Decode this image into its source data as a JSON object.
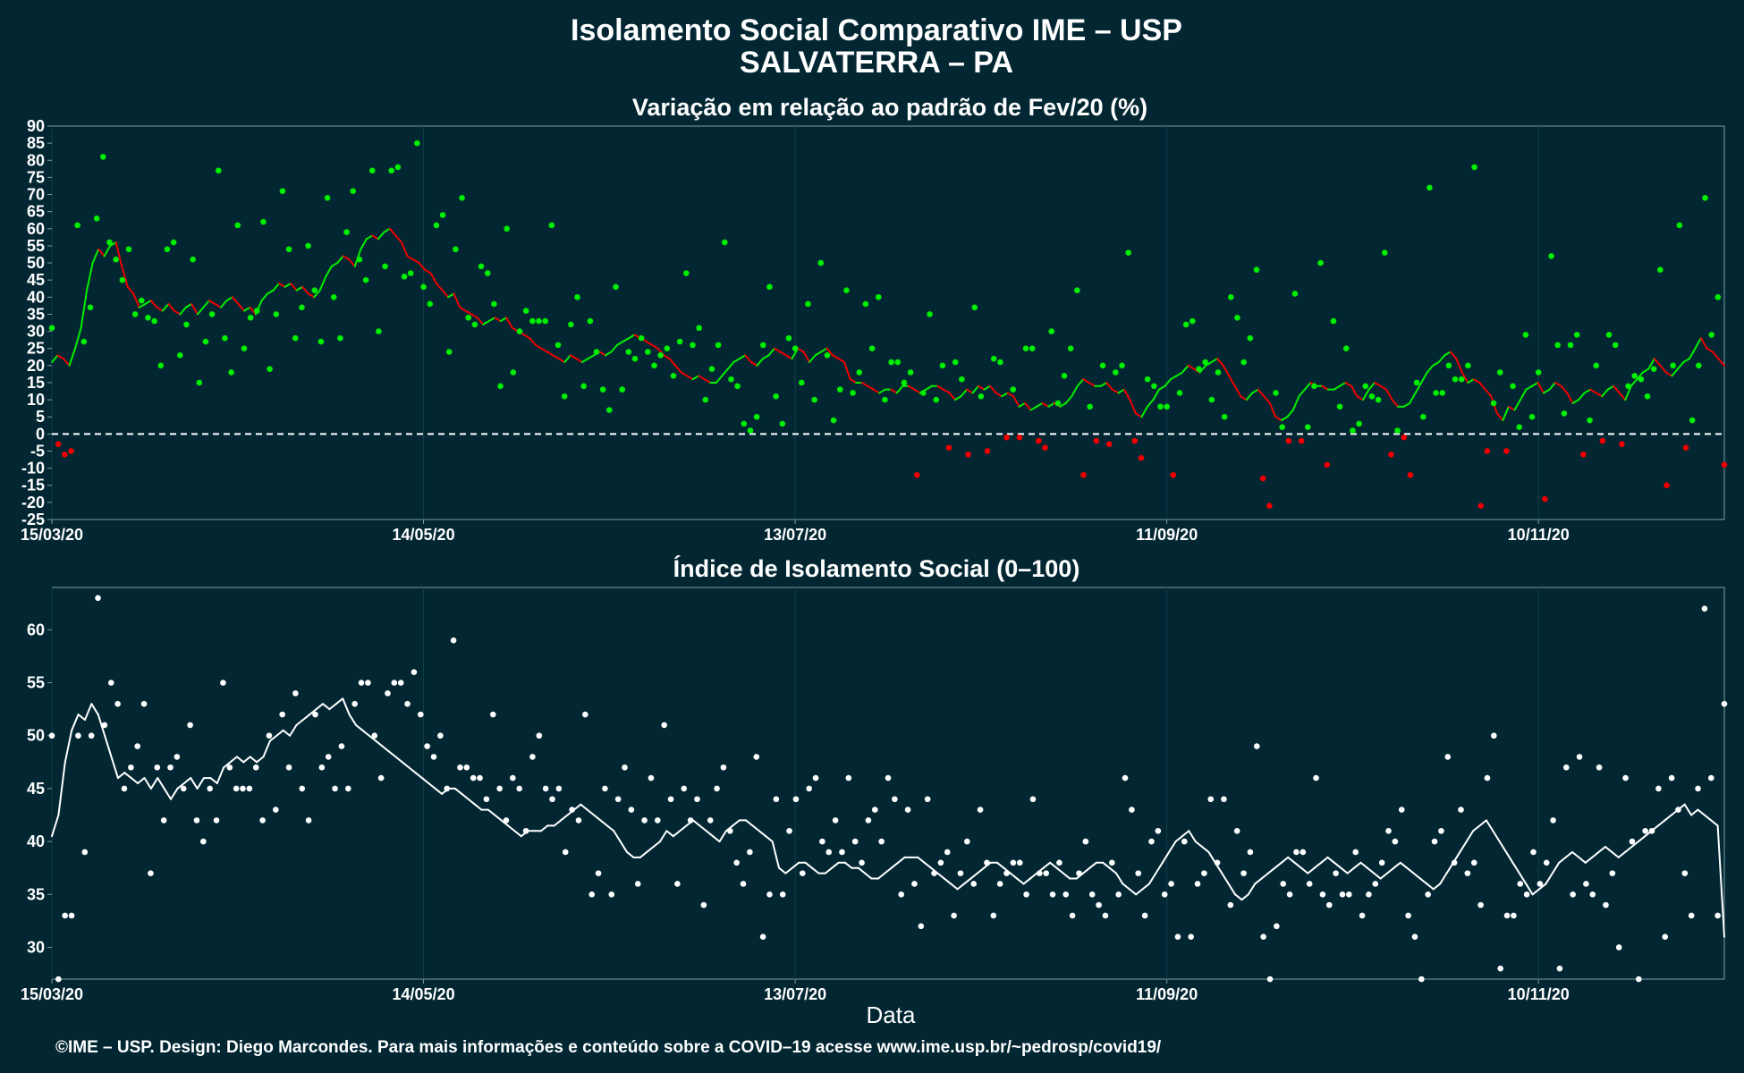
{
  "header": {
    "title_line1": "Isolamento Social Comparativo IME – USP",
    "title_line2": "SALVATERRA – PA"
  },
  "footer": {
    "credit": "©IME – USP. Design: Diego Marcondes. Para mais informações e conteúdo sobre a COVID–19 acesse www.ime.usp.br/~pedrosp/covid19/"
  },
  "colors": {
    "background": "#022733",
    "positive": "#00ee00",
    "negative": "#ee0000",
    "index_series": "#ffffff",
    "frame": "#7f9aa2"
  },
  "chart_data": [
    {
      "type": "scatter",
      "title": "Variação em relação ao padrão de Fev/20 (%)",
      "xlabel": "",
      "ylabel": "",
      "x_start": "2020-03-15",
      "x_end": "2020-12-10",
      "x_ticks": [
        "15/03/20",
        "14/05/20",
        "13/07/20",
        "11/09/20",
        "10/11/20"
      ],
      "ylim": [
        -25,
        90
      ],
      "y_ticks": [
        -25,
        -20,
        -15,
        -10,
        -5,
        0,
        5,
        10,
        15,
        20,
        25,
        30,
        35,
        40,
        45,
        50,
        55,
        60,
        65,
        70,
        75,
        80,
        85,
        90
      ],
      "reference_line": 0,
      "series": [
        {
          "type": "scatter",
          "values": [
            31,
            -3,
            -6,
            -5,
            61,
            27,
            37,
            63,
            81,
            56,
            51,
            45,
            54,
            35,
            39,
            34,
            33,
            20,
            54,
            56,
            23,
            32,
            51,
            15,
            27,
            35,
            77,
            28,
            18,
            61,
            25,
            34,
            36,
            62,
            19,
            35,
            71,
            54,
            28,
            37,
            55,
            42,
            27,
            69,
            40,
            28,
            59,
            71,
            51,
            45,
            77,
            30,
            49,
            77,
            78,
            46,
            47,
            85,
            43,
            38,
            61,
            64,
            24,
            54,
            69,
            34,
            32,
            49,
            47,
            38,
            14,
            60,
            18,
            30,
            36,
            33,
            33,
            33,
            61,
            26,
            11,
            32,
            40,
            14,
            33,
            24,
            13,
            7,
            43,
            13,
            24,
            22,
            28,
            24,
            20,
            23,
            25,
            17,
            27,
            47,
            26,
            31,
            10,
            19,
            26,
            56,
            16,
            14,
            3,
            1,
            5,
            26,
            43,
            11,
            3,
            28,
            25,
            15,
            38,
            10,
            50,
            23,
            4,
            13,
            42,
            12,
            18,
            38,
            25,
            40,
            10,
            21,
            21,
            15,
            18,
            -12,
            12,
            35,
            10,
            20,
            -4,
            21,
            16,
            -6,
            37,
            11,
            -5,
            22,
            21,
            -1,
            13,
            -1,
            25,
            25,
            -2,
            -4,
            30,
            9,
            17,
            25,
            42,
            -12,
            8,
            -2,
            20,
            -3,
            18,
            20,
            53,
            -2,
            -7,
            16,
            14,
            8,
            8,
            -12,
            12,
            32,
            33,
            19,
            21,
            10,
            18,
            5,
            40,
            34,
            21,
            28,
            48,
            -13,
            -21,
            12,
            2,
            -2,
            41,
            -2,
            2,
            14,
            50,
            -9,
            33,
            8,
            25,
            1,
            3,
            14,
            11,
            10,
            53,
            -6,
            1,
            -1,
            -12,
            15,
            5,
            72,
            12,
            12,
            20,
            16,
            16,
            20,
            78,
            -21,
            -5,
            9,
            18,
            -5,
            14,
            2,
            29,
            5,
            18,
            -19,
            52,
            26,
            6,
            26,
            29,
            -6,
            4,
            20,
            -2,
            29,
            26,
            -3,
            14,
            17,
            16,
            11,
            19,
            48,
            -15,
            20,
            61,
            -4,
            4,
            20,
            69,
            29,
            40,
            -9
          ]
        },
        {
          "type": "line",
          "name": "",
          "values": [
            21,
            23,
            22,
            20,
            25,
            31,
            42,
            50,
            54,
            52,
            55,
            56,
            49,
            43,
            41,
            37,
            38,
            39,
            37,
            36,
            38,
            36,
            35,
            37,
            38,
            35,
            37,
            39,
            38,
            37,
            39,
            40,
            38,
            36,
            37,
            35,
            39,
            41,
            42,
            44,
            43,
            44,
            42,
            43,
            41,
            40,
            42,
            46,
            49,
            50,
            52,
            51,
            49,
            54,
            57,
            58,
            57,
            59,
            60,
            58,
            56,
            52,
            51,
            50,
            48,
            47,
            44,
            42,
            40,
            41,
            37,
            36,
            35,
            34,
            32,
            33,
            34,
            33,
            34,
            31,
            30,
            29,
            28,
            26,
            25,
            24,
            23,
            22,
            21,
            23,
            22,
            21,
            22,
            23,
            24,
            23,
            24,
            26,
            27,
            28,
            29,
            28,
            27,
            26,
            25,
            23,
            22,
            20,
            18,
            17,
            16,
            17,
            16,
            15,
            15,
            17,
            19,
            21,
            22,
            23,
            21,
            20,
            22,
            23,
            25,
            24,
            23,
            22,
            25,
            24,
            21,
            23,
            24,
            25,
            23,
            22,
            21,
            16,
            15,
            15,
            14,
            13,
            12,
            13,
            13,
            12,
            14,
            14,
            13,
            12,
            13,
            14,
            14,
            13,
            12,
            10,
            11,
            13,
            12,
            14,
            13,
            14,
            12,
            11,
            12,
            11,
            8,
            9,
            7,
            8,
            9,
            8,
            9,
            8,
            9,
            11,
            14,
            16,
            15,
            14,
            14,
            15,
            13,
            12,
            13,
            10,
            6,
            5,
            8,
            10,
            13,
            14,
            16,
            17,
            18,
            20,
            19,
            18,
            20,
            21,
            22,
            20,
            17,
            14,
            11,
            10,
            12,
            13,
            11,
            9,
            5,
            4,
            5,
            7,
            11,
            13,
            15,
            14,
            14,
            13,
            13,
            14,
            15,
            14,
            11,
            10,
            13,
            15,
            14,
            13,
            10,
            8,
            8,
            9,
            12,
            15,
            18,
            20,
            21,
            23,
            24,
            22,
            18,
            15,
            16,
            15,
            13,
            11,
            6,
            4,
            8,
            7,
            10,
            13,
            14,
            15,
            12,
            13,
            15,
            14,
            12,
            9,
            10,
            12,
            13,
            12,
            11,
            13,
            14,
            12,
            10,
            14,
            16,
            18,
            19,
            22,
            20,
            18,
            17,
            19,
            21,
            22,
            25,
            28,
            25,
            24,
            22,
            20
          ]
        }
      ]
    },
    {
      "type": "scatter",
      "title": "Índice de Isolamento Social (0–100)",
      "xlabel": "Data",
      "ylabel": "",
      "x_start": "2020-03-15",
      "x_end": "2020-12-10",
      "x_ticks": [
        "15/03/20",
        "14/05/20",
        "13/07/20",
        "11/09/20",
        "10/11/20"
      ],
      "ylim": [
        27,
        64
      ],
      "y_ticks": [
        30,
        35,
        40,
        45,
        50,
        55,
        60
      ],
      "series": [
        {
          "type": "scatter",
          "values": [
            50,
            27,
            33,
            33,
            50,
            39,
            50,
            63,
            51,
            55,
            53,
            45,
            47,
            49,
            53,
            37,
            47,
            42,
            47,
            48,
            45,
            51,
            42,
            40,
            45,
            42,
            55,
            47,
            45,
            45,
            45,
            47,
            42,
            50,
            43,
            52,
            47,
            54,
            45,
            42,
            52,
            47,
            48,
            45,
            49,
            45,
            53,
            55,
            55,
            50,
            46,
            54,
            55,
            55,
            53,
            56,
            52,
            49,
            48,
            50,
            45,
            59,
            47,
            47,
            46,
            46,
            44,
            52,
            45,
            42,
            46,
            45,
            41,
            48,
            50,
            45,
            44,
            45,
            39,
            43,
            42,
            52,
            35,
            37,
            45,
            35,
            44,
            47,
            43,
            36,
            42,
            46,
            42,
            51,
            44,
            36,
            45,
            42,
            44,
            34,
            42,
            45,
            47,
            41,
            38,
            36,
            39,
            48,
            31,
            35,
            44,
            35,
            41,
            44,
            37,
            45,
            46,
            40,
            39,
            42,
            39,
            46,
            40,
            38,
            42,
            43,
            40,
            46,
            44,
            35,
            43,
            36,
            32,
            44,
            37,
            38,
            39,
            33,
            37,
            40,
            36,
            43,
            38,
            33,
            36,
            37,
            38,
            38,
            35,
            44,
            37,
            37,
            35,
            38,
            35,
            33,
            37,
            40,
            35,
            34,
            33,
            38,
            35,
            46,
            43,
            37,
            33,
            40,
            41,
            35,
            36,
            31,
            40,
            31,
            36,
            37,
            44,
            38,
            44,
            34,
            41,
            37,
            39,
            49,
            31,
            27,
            32,
            36,
            35,
            39,
            39,
            36,
            46,
            35,
            34,
            37,
            35,
            35,
            39,
            33,
            35,
            36,
            38,
            41,
            40,
            43,
            33,
            31,
            27,
            35,
            40,
            41,
            48,
            38,
            43,
            37,
            38,
            34,
            46,
            50,
            28,
            33,
            33,
            36,
            35,
            39,
            36,
            38,
            42,
            28,
            47,
            35,
            48,
            36,
            35,
            47,
            34,
            37,
            30,
            46,
            40,
            27,
            41,
            41,
            45,
            31,
            46,
            43,
            37,
            33,
            45,
            62,
            46,
            33,
            53
          ]
        },
        {
          "type": "line",
          "name": "",
          "values": [
            40.5,
            42.5,
            47.5,
            50.5,
            52,
            51.5,
            53,
            52,
            50,
            48,
            46,
            46.5,
            46,
            45.5,
            46,
            45,
            46,
            45,
            44,
            45,
            45.5,
            46,
            45,
            46,
            46,
            45.5,
            47,
            47.5,
            48,
            47.5,
            48,
            47.5,
            48,
            49.5,
            50,
            50.5,
            50,
            51,
            51.5,
            52,
            52.5,
            53,
            52.5,
            53,
            53.5,
            52,
            51,
            50.5,
            50,
            49.5,
            49,
            48.5,
            48,
            47.5,
            47,
            46.5,
            46,
            45.5,
            45,
            44.5,
            45,
            45,
            44.5,
            44,
            43.5,
            43,
            43,
            42.5,
            42,
            41.5,
            41,
            40.5,
            41,
            41,
            41,
            41.5,
            41.5,
            42,
            42.5,
            43,
            43.5,
            43,
            42.5,
            42,
            41.5,
            41,
            40,
            39,
            38.5,
            38.5,
            39,
            39.5,
            40,
            41,
            40.5,
            41,
            41.5,
            42,
            41.5,
            41,
            40.5,
            40,
            41,
            41.5,
            42,
            42,
            41.5,
            41,
            40.5,
            40,
            37.5,
            37,
            37.5,
            38,
            38,
            37.5,
            37,
            37,
            37.5,
            38,
            38,
            37.5,
            37.5,
            37,
            36.5,
            36.5,
            37,
            37.5,
            38,
            38.5,
            38.5,
            38.5,
            38,
            37.5,
            37,
            36.5,
            36,
            35.5,
            36,
            36.5,
            37,
            37.5,
            38,
            38,
            37.5,
            37,
            36.5,
            36,
            36.5,
            37,
            37.5,
            38,
            37.5,
            37,
            36.5,
            36.5,
            37,
            37.5,
            38,
            38,
            37.5,
            37,
            36,
            35.5,
            35,
            35.5,
            36,
            37,
            38,
            39,
            40,
            40.5,
            41,
            40,
            39.5,
            39,
            38,
            37,
            36,
            35,
            34.5,
            35,
            36,
            36.5,
            37,
            37.5,
            38,
            38.5,
            38,
            37.5,
            37,
            37.5,
            38,
            38.5,
            38,
            37.5,
            37,
            37.5,
            38,
            37.5,
            37,
            36.5,
            37,
            37.5,
            38,
            37.5,
            37,
            36.5,
            36,
            35.5,
            36,
            37,
            38,
            39,
            40,
            41,
            41.5,
            42,
            41,
            40,
            39,
            38,
            37,
            36,
            35,
            35.5,
            36,
            37,
            38,
            38.5,
            39,
            38.5,
            38,
            38.5,
            39,
            39.5,
            39,
            38.5,
            39,
            39.5,
            40,
            40.5,
            41,
            41.5,
            42,
            42.5,
            43,
            43.5,
            42.5,
            43,
            42.5,
            42,
            41.5,
            31
          ]
        }
      ]
    }
  ]
}
